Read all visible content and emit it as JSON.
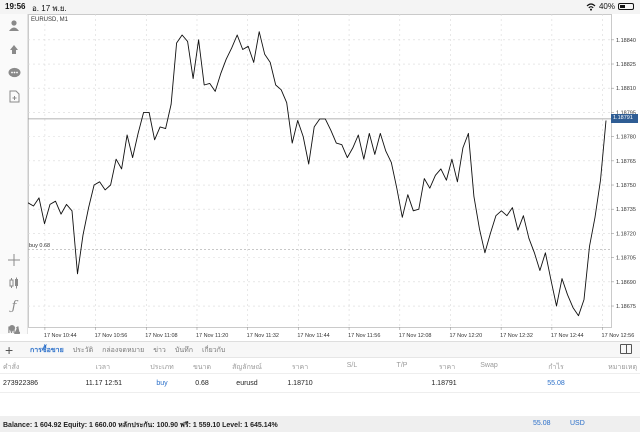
{
  "status": {
    "time": "19:56",
    "date": "อ. 17 พ.ย.",
    "battery": "40%",
    "battery_level": 0.4
  },
  "chart": {
    "title": "EURUSD, M1",
    "current_price_label": "1.18791",
    "order_line_label": "buy 0.68",
    "colors": {
      "line": "#111111",
      "price_tag": "#2f5d94",
      "grid": "#d9d9d9"
    }
  },
  "chart_data": {
    "type": "line",
    "symbol": "EURUSD",
    "timeframe": "M1",
    "ylim": [
      1.18662,
      1.18856
    ],
    "y_ticks": [
      "1.18840",
      "1.18825",
      "1.18810",
      "1.18795",
      "1.18780",
      "1.18765",
      "1.18750",
      "1.18735",
      "1.18720",
      "1.18705",
      "1.18690",
      "1.18675"
    ],
    "x_ticks": [
      "17 Nov 10:44",
      "17 Nov 10:56",
      "17 Nov 11:08",
      "17 Nov 11:20",
      "17 Nov 11:32",
      "17 Nov 11:44",
      "17 Nov 11:56",
      "17 Nov 12:08",
      "17 Nov 12:20",
      "17 Nov 12:32",
      "17 Nov 12:44",
      "17 Nov 12:56"
    ],
    "x_start": "17 Nov 10:40",
    "x_end": "17 Nov 12:58",
    "current_price": 1.18791,
    "order_price": 1.1871,
    "grid": true,
    "series": [
      {
        "values": [
          1.18739,
          1.18737,
          1.18742,
          1.18726,
          1.18738,
          1.1874,
          1.18732,
          1.18738,
          1.18734,
          1.18695,
          1.18719,
          1.18736,
          1.1875,
          1.18752,
          1.18747,
          1.1875,
          1.18766,
          1.1876,
          1.18781,
          1.18767,
          1.18782,
          1.18795,
          1.18795,
          1.18778,
          1.18786,
          1.18785,
          1.188,
          1.18838,
          1.18843,
          1.18839,
          1.18816,
          1.1884,
          1.18812,
          1.18813,
          1.18808,
          1.18819,
          1.18828,
          1.18835,
          1.18843,
          1.18834,
          1.18836,
          1.18826,
          1.18845,
          1.18831,
          1.18826,
          1.18812,
          1.18809,
          1.18801,
          1.18776,
          1.1879,
          1.1878,
          1.18763,
          1.18786,
          1.18791,
          1.18791,
          1.18784,
          1.18776,
          1.18775,
          1.18767,
          1.18773,
          1.18781,
          1.18766,
          1.18782,
          1.18769,
          1.18782,
          1.18771,
          1.18764,
          1.18748,
          1.1873,
          1.18744,
          1.18734,
          1.18735,
          1.18754,
          1.18748,
          1.18756,
          1.1876,
          1.18753,
          1.18766,
          1.18752,
          1.18773,
          1.18782,
          1.18743,
          1.18723,
          1.18708,
          1.1872,
          1.18731,
          1.18734,
          1.18731,
          1.18736,
          1.18722,
          1.18731,
          1.18717,
          1.18708,
          1.18697,
          1.18708,
          1.18691,
          1.18675,
          1.18692,
          1.18682,
          1.18674,
          1.18669,
          1.18679,
          1.18712,
          1.1873,
          1.18753,
          1.1879
        ]
      }
    ]
  },
  "toolbar": {
    "timeframe_label": "M1",
    "icons": [
      "account-icon",
      "trade-icon",
      "chat-icon",
      "document-icon",
      "crosshair-icon",
      "candles-icon",
      "indicator-icon",
      "objects-icon"
    ]
  },
  "tabs": {
    "items": [
      "การซื้อขาย",
      "ประวัติ",
      "กล่องจดหมาย",
      "ข่าว",
      "บันทึก",
      "เกี่ยวกับ"
    ],
    "active_index": 0
  },
  "table": {
    "headers": {
      "order": "คำสั่ง",
      "time": "เวลา",
      "type": "ประเภท",
      "size": "ขนาด",
      "symbol": "สัญลักษณ์",
      "price": "ราคา",
      "sl": "S/L",
      "tp": "T/P",
      "current_price": "ราคา",
      "swap": "Swap",
      "profit": "กำไร",
      "comment": "หมายเหตุ"
    },
    "row": {
      "order": "273922386",
      "time": "11.17 12:51",
      "type": "buy",
      "size": "0.68",
      "symbol": "eurusd",
      "price": "1.18710",
      "current_price": "1.18791",
      "profit": "55.08"
    }
  },
  "balance": {
    "text": "Balance: 1 604.92 Equity: 1 660.00 หลักประกัน: 100.90 ฟรี: 1 559.10 Level: 1 645.14%",
    "profit": "55.08",
    "currency": "USD"
  }
}
